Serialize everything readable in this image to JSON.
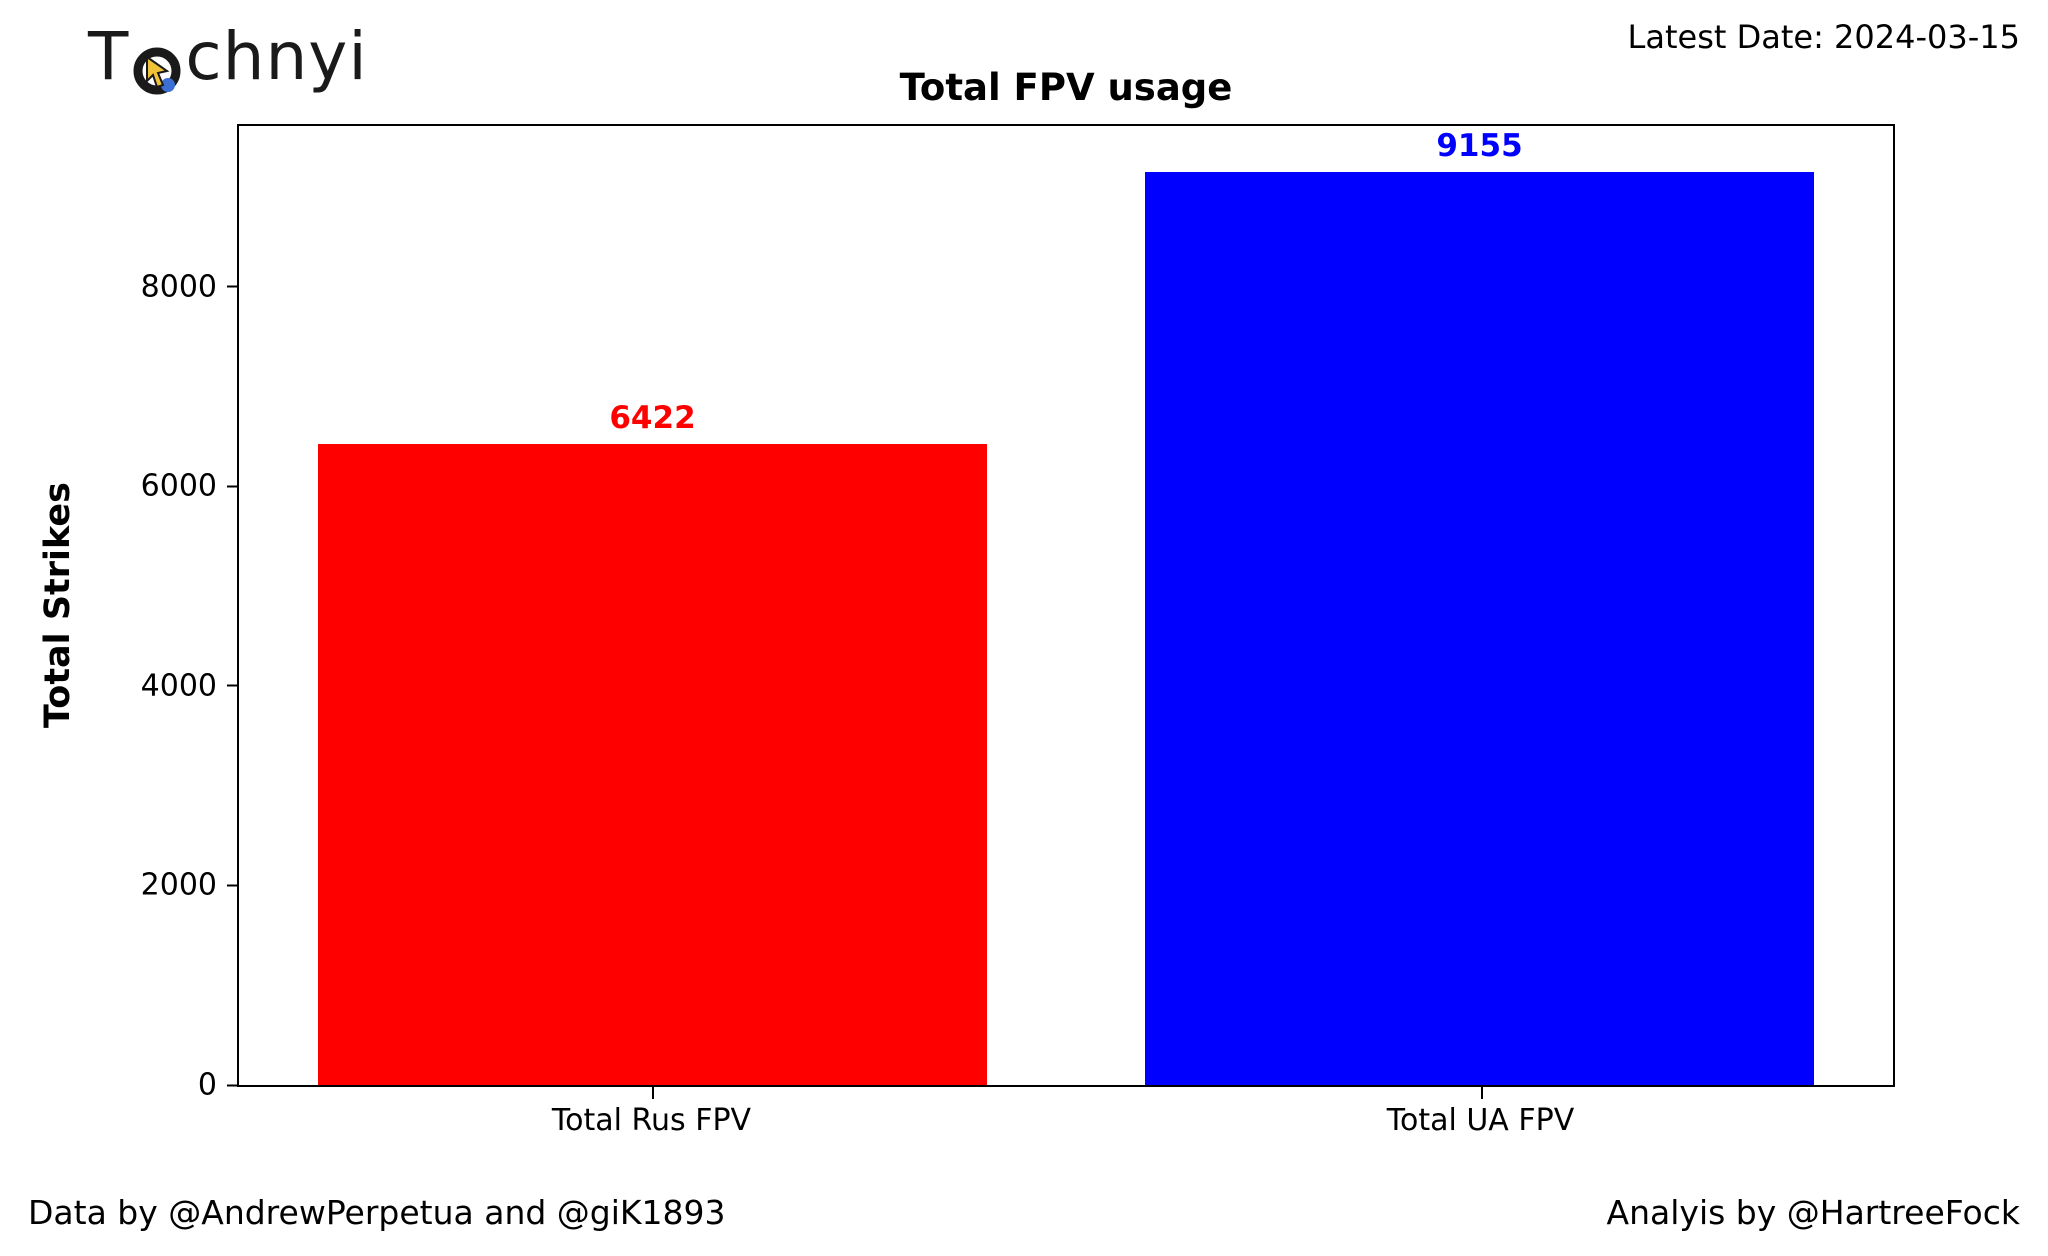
{
  "header": {
    "logo_prefix": "T",
    "logo_suffix": "chnyi",
    "latest_date": "Latest Date: 2024-03-15"
  },
  "footer": {
    "left": "Data by @AndrewPerpetua and @giK1893",
    "right": "Analyis by @HartreeFock"
  },
  "chart_data": {
    "type": "bar",
    "title": "Total FPV usage",
    "xlabel": "",
    "ylabel": "Total Strikes",
    "categories": [
      "Total Rus FPV",
      "Total UA FPV"
    ],
    "values": [
      6422,
      9155
    ],
    "value_labels": [
      "6422",
      "9155"
    ],
    "bar_colors": [
      "#ff0000",
      "#0000ff"
    ],
    "ylim": [
      0,
      9613
    ],
    "yticks": [
      0,
      2000,
      4000,
      6000,
      8000
    ],
    "grid": false,
    "legend": "none"
  },
  "icons": {
    "logo_icon": "target-cursor-icon"
  }
}
